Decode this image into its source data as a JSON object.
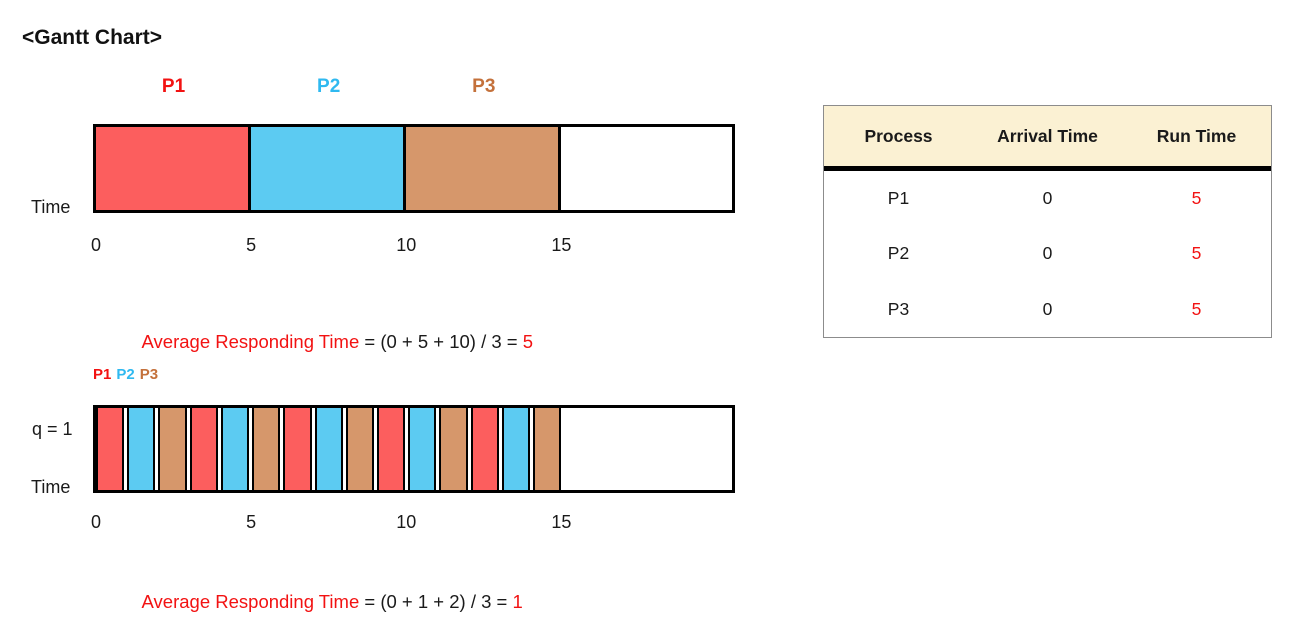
{
  "title": "<Gantt Chart>",
  "palette": {
    "p1_fill": "#FC5E5E",
    "p2_fill": "#5CCBF2",
    "p3_fill": "#D6976B",
    "p1_text": "#F21212",
    "p2_text": "#2FB9F0",
    "p3_text": "#C4713B",
    "accent_red": "#F21212",
    "table_header_bg": "#FBF1D3",
    "table_border": "#8C8C8C"
  },
  "chart_data": [
    {
      "type": "gantt",
      "id": "fcfs",
      "time_axis_label": "Time",
      "ticks": [
        0,
        5,
        10,
        15
      ],
      "axis_max": 20.5,
      "process_labels": [
        "P1",
        "P2",
        "P3"
      ],
      "segments": [
        {
          "process": "P1",
          "start": 0,
          "end": 5
        },
        {
          "process": "P2",
          "start": 5,
          "end": 10
        },
        {
          "process": "P3",
          "start": 10,
          "end": 15
        }
      ],
      "annotation": {
        "label": "Average Responding Time",
        "expression": " = (0 + 5 + 10) / 3 = ",
        "result": "5"
      }
    },
    {
      "type": "gantt",
      "id": "round-robin",
      "quantum_label": "q = 1",
      "time_axis_label": "Time",
      "ticks": [
        0,
        5,
        10,
        15
      ],
      "axis_max": 20.5,
      "process_labels": [
        "P1",
        "P2",
        "P3"
      ],
      "segments": [
        {
          "process": "P1",
          "start": 0,
          "end": 1
        },
        {
          "process": "P2",
          "start": 1,
          "end": 2
        },
        {
          "process": "P3",
          "start": 2,
          "end": 3
        },
        {
          "process": "P1",
          "start": 3,
          "end": 4
        },
        {
          "process": "P2",
          "start": 4,
          "end": 5
        },
        {
          "process": "P3",
          "start": 5,
          "end": 6
        },
        {
          "process": "P1",
          "start": 6,
          "end": 7
        },
        {
          "process": "P2",
          "start": 7,
          "end": 8
        },
        {
          "process": "P3",
          "start": 8,
          "end": 9
        },
        {
          "process": "P1",
          "start": 9,
          "end": 10
        },
        {
          "process": "P2",
          "start": 10,
          "end": 11
        },
        {
          "process": "P3",
          "start": 11,
          "end": 12
        },
        {
          "process": "P1",
          "start": 12,
          "end": 13
        },
        {
          "process": "P2",
          "start": 13,
          "end": 14
        },
        {
          "process": "P3",
          "start": 14,
          "end": 15
        }
      ],
      "annotation": {
        "label": "Average Responding Time",
        "expression": " = (0 + 1 + 2) / 3 = ",
        "result": "1"
      }
    }
  ],
  "process_table": {
    "headers": [
      "Process",
      "Arrival Time",
      "Run Time"
    ],
    "rows": [
      {
        "process": "P1",
        "arrival_time": "0",
        "run_time": "5"
      },
      {
        "process": "P2",
        "arrival_time": "0",
        "run_time": "5"
      },
      {
        "process": "P3",
        "arrival_time": "0",
        "run_time": "5"
      }
    ]
  }
}
